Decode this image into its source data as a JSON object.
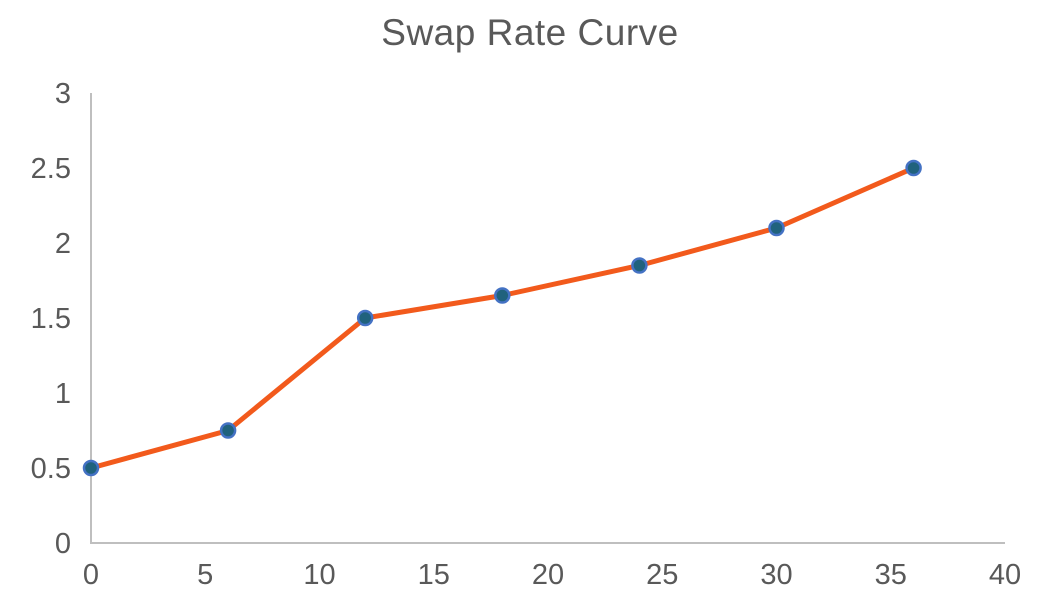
{
  "chart_data": {
    "type": "line",
    "title": "Swap Rate Curve",
    "x": [
      0,
      6,
      12,
      18,
      24,
      30,
      36
    ],
    "y": [
      0.5,
      0.75,
      1.5,
      1.65,
      1.85,
      2.1,
      2.5
    ],
    "xlim": [
      0,
      40
    ],
    "ylim": [
      0,
      3
    ],
    "x_ticks": [
      0,
      5,
      10,
      15,
      20,
      25,
      30,
      35,
      40
    ],
    "x_tick_labels": [
      "0",
      "5",
      "10",
      "15",
      "20",
      "25",
      "30",
      "35",
      "40"
    ],
    "y_ticks": [
      0,
      0.5,
      1,
      1.5,
      2,
      2.5,
      3
    ],
    "y_tick_labels": [
      "0",
      "0.5",
      "1",
      "1.5",
      "2",
      "2.5",
      "3"
    ],
    "grid": false,
    "legend": false,
    "marker": "circle",
    "colors": {
      "line": "#F25A1C",
      "marker_fill": "#20627D",
      "marker_border": "#4472C4",
      "axis_line": "#BFBFBF",
      "tick_text": "#595959",
      "title_text": "#595959",
      "background": "#FFFFFF"
    }
  }
}
